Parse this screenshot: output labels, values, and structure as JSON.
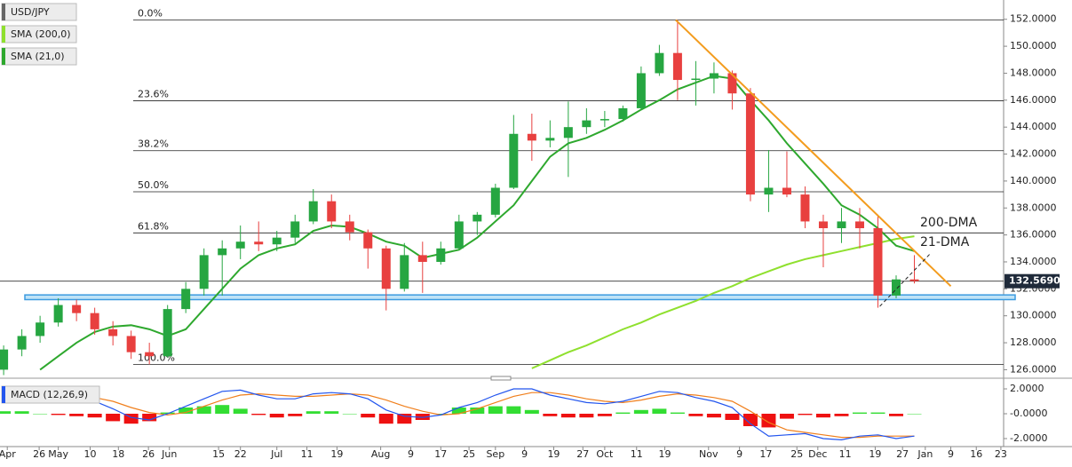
{
  "chart_data": [
    {
      "type": "candlestick",
      "name": "USD/JPY",
      "x": [
        0,
        1,
        2,
        3,
        4,
        5,
        6,
        7,
        8,
        9,
        10,
        11,
        12,
        13,
        14,
        15,
        16,
        17,
        18,
        19,
        20,
        21,
        22,
        23,
        24,
        25,
        26,
        27,
        28,
        29,
        30,
        31,
        32,
        33,
        34,
        35,
        36,
        37,
        38,
        39,
        40,
        41,
        42,
        43,
        44,
        45,
        46,
        47,
        48,
        49,
        50
      ],
      "open": [
        126.0,
        127.5,
        128.5,
        129.5,
        130.8,
        130.2,
        129.0,
        128.5,
        127.3,
        127.0,
        130.5,
        132.0,
        134.5,
        135.0,
        135.5,
        135.3,
        135.8,
        137.0,
        138.5,
        137.0,
        136.2,
        135.0,
        132.0,
        134.5,
        134.0,
        135.0,
        137.0,
        137.5,
        139.5,
        143.5,
        143.0,
        143.2,
        144.0,
        144.5,
        144.6,
        145.4,
        148.0,
        149.5,
        147.5,
        147.6,
        148.0,
        146.5,
        139.0,
        139.5,
        139.0,
        137.0,
        136.5,
        137.0,
        136.5,
        131.5,
        132.7
      ],
      "high": [
        127.8,
        129.0,
        130.0,
        131.3,
        131.2,
        130.6,
        129.6,
        128.9,
        128.0,
        130.8,
        132.5,
        135.0,
        135.6,
        136.7,
        137.0,
        136.3,
        137.5,
        139.4,
        139.0,
        137.5,
        136.4,
        135.2,
        135.4,
        135.5,
        135.5,
        137.5,
        137.7,
        139.8,
        144.9,
        145.0,
        144.5,
        145.9,
        145.4,
        145.2,
        145.6,
        148.5,
        150.1,
        151.95,
        148.9,
        148.8,
        148.2,
        146.9,
        142.3,
        142.2,
        139.6,
        137.5,
        138.0,
        138.0,
        137.5,
        133.0,
        134.5
      ],
      "low": [
        125.6,
        127.0,
        128.0,
        129.2,
        129.6,
        128.6,
        127.8,
        126.8,
        126.4,
        126.9,
        130.2,
        131.5,
        131.5,
        134.2,
        134.8,
        134.8,
        135.4,
        136.8,
        136.5,
        135.6,
        133.5,
        130.4,
        131.8,
        131.7,
        133.8,
        134.9,
        136.0,
        137.3,
        139.4,
        141.5,
        142.5,
        140.3,
        143.5,
        144.0,
        144.4,
        145.3,
        147.8,
        146.0,
        145.6,
        146.5,
        145.3,
        138.5,
        137.7,
        138.8,
        136.5,
        133.6,
        135.4,
        135.0,
        130.6,
        131.3,
        132.4
      ],
      "close": [
        127.5,
        128.5,
        129.5,
        130.8,
        130.2,
        129.0,
        128.5,
        127.3,
        127.0,
        130.5,
        132.0,
        134.5,
        135.0,
        135.5,
        135.3,
        135.8,
        137.0,
        138.5,
        137.0,
        136.2,
        135.0,
        132.0,
        134.5,
        134.0,
        135.0,
        137.0,
        137.5,
        139.5,
        143.5,
        143.0,
        143.2,
        144.0,
        144.5,
        144.6,
        145.4,
        148.0,
        149.5,
        147.5,
        147.6,
        148.0,
        146.5,
        139.0,
        139.5,
        139.0,
        137.0,
        136.5,
        137.0,
        136.5,
        131.5,
        132.7,
        132.57
      ],
      "up_color": "#26a641",
      "down_color": "#e8403f",
      "series": [
        {
          "name": "SMA (200,0)",
          "color": "#8fe02e",
          "values": [
            null,
            null,
            null,
            null,
            null,
            null,
            null,
            null,
            null,
            null,
            null,
            null,
            null,
            null,
            null,
            null,
            null,
            null,
            null,
            null,
            null,
            null,
            null,
            null,
            null,
            null,
            null,
            null,
            null,
            126.1,
            126.7,
            127.3,
            127.8,
            128.4,
            129.0,
            129.5,
            130.1,
            130.6,
            131.1,
            131.7,
            132.2,
            132.8,
            133.3,
            133.8,
            134.2,
            134.5,
            134.8,
            135.1,
            135.4,
            135.7,
            135.9
          ]
        },
        {
          "name": "SMA (21,0)",
          "color": "#2ea82e",
          "values": [
            null,
            null,
            126.0,
            127.0,
            128.0,
            128.8,
            129.2,
            129.3,
            129.0,
            128.5,
            129.0,
            130.5,
            132.0,
            133.5,
            134.5,
            135.0,
            135.3,
            136.3,
            136.7,
            136.6,
            136.1,
            135.5,
            135.2,
            134.3,
            134.6,
            134.9,
            135.8,
            137.0,
            138.2,
            140.0,
            141.8,
            142.8,
            143.2,
            143.8,
            144.5,
            145.3,
            146.0,
            146.8,
            147.3,
            147.8,
            147.6,
            146.0,
            144.5,
            142.8,
            141.3,
            139.8,
            138.2,
            137.5,
            136.5,
            135.2,
            134.8
          ]
        }
      ],
      "xlim": [
        -0.2,
        54.9
      ],
      "xticks": [
        {
          "value": 0.2,
          "label": "Apr"
        },
        {
          "value": 1.95,
          "label": "26"
        },
        {
          "value": 3.0,
          "label": "May"
        },
        {
          "value": 4.75,
          "label": "10"
        },
        {
          "value": 6.3,
          "label": "18"
        },
        {
          "value": 7.95,
          "label": "26"
        },
        {
          "value": 9.1,
          "label": "Jun"
        },
        {
          "value": 11.8,
          "label": "15"
        },
        {
          "value": 13.0,
          "label": "22"
        },
        {
          "value": 15.0,
          "label": "Jul"
        },
        {
          "value": 16.65,
          "label": "11"
        },
        {
          "value": 18.3,
          "label": "19"
        },
        {
          "value": 20.7,
          "label": "Aug"
        },
        {
          "value": 22.35,
          "label": "9"
        },
        {
          "value": 24.0,
          "label": "17"
        },
        {
          "value": 25.55,
          "label": "25"
        },
        {
          "value": 27.0,
          "label": "Sep"
        },
        {
          "value": 28.6,
          "label": "9"
        },
        {
          "value": 30.2,
          "label": "19"
        },
        {
          "value": 31.8,
          "label": "27"
        },
        {
          "value": 33.0,
          "label": "Oct"
        },
        {
          "value": 34.75,
          "label": "11"
        },
        {
          "value": 36.3,
          "label": "19"
        },
        {
          "value": 38.7,
          "label": "Nov"
        },
        {
          "value": 40.4,
          "label": "9"
        },
        {
          "value": 41.85,
          "label": "17"
        },
        {
          "value": 43.55,
          "label": "25"
        },
        {
          "value": 44.7,
          "label": "Dec"
        },
        {
          "value": 46.2,
          "label": "11"
        },
        {
          "value": 47.85,
          "label": "19"
        },
        {
          "value": 49.35,
          "label": "27"
        },
        {
          "value": 50.6,
          "label": "Jan"
        },
        {
          "value": 52.0,
          "label": "9"
        },
        {
          "value": 53.4,
          "label": "16"
        },
        {
          "value": 54.75,
          "label": "23"
        }
      ],
      "ylim": [
        125.5,
        153.3
      ],
      "yticks": [
        {
          "value": 126,
          "label": "126.0000"
        },
        {
          "value": 128,
          "label": "128.0000"
        },
        {
          "value": 130,
          "label": "130.0000"
        },
        {
          "value": 132,
          "label": "132.0000"
        },
        {
          "value": 134,
          "label": "134.0000"
        },
        {
          "value": 136,
          "label": "136.0000"
        },
        {
          "value": 138,
          "label": "138.0000"
        },
        {
          "value": 140,
          "label": "140.0000"
        },
        {
          "value": 142,
          "label": "142.0000"
        },
        {
          "value": 144,
          "label": "144.0000"
        },
        {
          "value": 146,
          "label": "146.0000"
        },
        {
          "value": 148,
          "label": "148.0000"
        },
        {
          "value": 150,
          "label": "150.0000"
        },
        {
          "value": 152,
          "label": "152.0000"
        }
      ],
      "fibonacci": [
        {
          "label": "0.0%",
          "value": 151.95
        },
        {
          "label": "23.6%",
          "value": 145.95
        },
        {
          "label": "38.2%",
          "value": 142.25
        },
        {
          "label": "50.0%",
          "value": 139.2
        },
        {
          "label": "61.8%",
          "value": 136.15
        },
        {
          "label": "100.0%",
          "value": 126.4
        }
      ],
      "last_price": {
        "value": 132.569,
        "label": "132.5690"
      },
      "support_zone": [
        131.2,
        131.55
      ],
      "trendlines": [
        {
          "color": "#f39c1e",
          "points": [
            [
              36.9,
              151.95
            ],
            [
              52.0,
              132.2
            ]
          ]
        },
        {
          "color": "#222222",
          "dashed": true,
          "points": [
            [
              48.1,
              130.7
            ],
            [
              50.9,
              134.65
            ]
          ]
        }
      ],
      "annotations": [
        {
          "text": "200-DMA",
          "color": "#8fe02e"
        },
        {
          "text": "21-DMA",
          "color": "#2ea82e"
        }
      ]
    },
    {
      "type": "macd",
      "name": "MACD (12,26,9)",
      "x": [
        0,
        1,
        2,
        3,
        4,
        5,
        6,
        7,
        8,
        9,
        10,
        11,
        12,
        13,
        14,
        15,
        16,
        17,
        18,
        19,
        20,
        21,
        22,
        23,
        24,
        25,
        26,
        27,
        28,
        29,
        30,
        31,
        32,
        33,
        34,
        35,
        36,
        37,
        38,
        39,
        40,
        41,
        42,
        43,
        44,
        45,
        46,
        47,
        48,
        49,
        50
      ],
      "macd": [
        1.6,
        1.7,
        1.6,
        1.5,
        1.3,
        1.0,
        0.4,
        -0.3,
        -0.5,
        0.0,
        0.6,
        1.2,
        1.8,
        1.9,
        1.5,
        1.2,
        1.2,
        1.6,
        1.7,
        1.6,
        1.2,
        0.3,
        -0.2,
        -0.3,
        -0.1,
        0.5,
        0.9,
        1.5,
        2.0,
        2.0,
        1.5,
        1.2,
        0.9,
        0.8,
        1.0,
        1.4,
        1.8,
        1.7,
        1.3,
        1.0,
        0.5,
        -0.8,
        -1.8,
        -1.7,
        -1.6,
        -2.0,
        -2.1,
        -1.8,
        -1.7,
        -2.0,
        -1.8
      ],
      "signal": [
        1.4,
        1.5,
        1.6,
        1.6,
        1.5,
        1.3,
        1.0,
        0.5,
        0.1,
        -0.1,
        0.1,
        0.6,
        1.1,
        1.5,
        1.6,
        1.5,
        1.4,
        1.4,
        1.5,
        1.6,
        1.5,
        1.1,
        0.6,
        0.2,
        -0.1,
        0.0,
        0.4,
        0.9,
        1.4,
        1.7,
        1.7,
        1.5,
        1.2,
        1.0,
        0.9,
        1.1,
        1.4,
        1.6,
        1.5,
        1.3,
        1.0,
        0.2,
        -0.7,
        -1.3,
        -1.5,
        -1.7,
        -1.9,
        -1.9,
        -1.8,
        -1.8,
        -1.8
      ],
      "histogram": [
        0.2,
        0.2,
        0.0,
        -0.1,
        -0.2,
        -0.3,
        -0.6,
        -0.8,
        -0.6,
        0.1,
        0.5,
        0.6,
        0.7,
        0.4,
        -0.1,
        -0.3,
        -0.2,
        0.2,
        0.2,
        0.0,
        -0.3,
        -0.8,
        -0.8,
        -0.5,
        0.0,
        0.5,
        0.5,
        0.6,
        0.6,
        0.3,
        -0.2,
        -0.3,
        -0.3,
        -0.2,
        0.1,
        0.3,
        0.4,
        0.1,
        -0.2,
        -0.3,
        -0.5,
        -1.0,
        -1.1,
        -0.4,
        -0.1,
        -0.3,
        -0.2,
        0.1,
        0.1,
        -0.2,
        0.0
      ],
      "macd_color": "#2255ee",
      "signal_color": "#f07f1c",
      "up_color": "#33dd33",
      "down_color": "#ee1111",
      "ylim": [
        -2.6,
        2.6
      ],
      "yticks": [
        {
          "value": 2,
          "label": "2.0000"
        },
        {
          "value": 0,
          "label": "-0.0000"
        },
        {
          "value": -2,
          "label": "-2.0000"
        }
      ]
    }
  ]
}
